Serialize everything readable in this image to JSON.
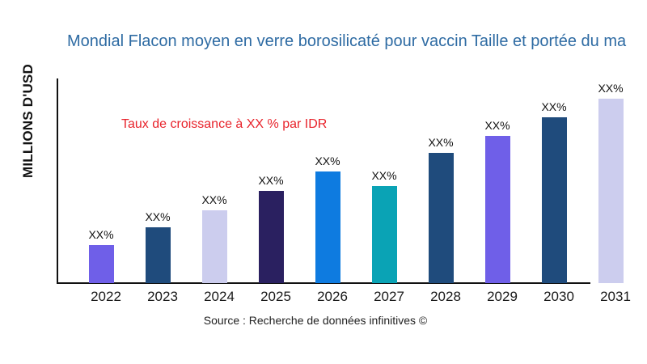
{
  "title": {
    "text": "Mondial Flacon moyen en verre borosilicaté pour vaccin Taille et portée du ma",
    "color": "#2e6ba3"
  },
  "annotation": {
    "text": "Taux de croissance à XX % par IDR",
    "color": "#e8232b"
  },
  "y_axis_label": "MILLIONS D'USD",
  "source": "Source : Recherche de données infinitives ©",
  "chart_data": {
    "type": "bar",
    "title": "Mondial Flacon moyen en verre borosilicaté pour vaccin Taille et portée du ma",
    "xlabel": "",
    "ylabel": "MILLIONS D'USD",
    "categories": [
      "2022",
      "2023",
      "2024",
      "2025",
      "2026",
      "2027",
      "2028",
      "2029",
      "2030",
      "2031"
    ],
    "values": [
      47,
      69,
      90,
      114,
      138,
      120,
      161,
      182,
      205,
      228
    ],
    "value_labels": [
      "XX%",
      "XX%",
      "XX%",
      "XX%",
      "XX%",
      "XX%",
      "XX%",
      "XX%",
      "XX%",
      "XX%"
    ],
    "bar_colors": [
      "#6f5fe8",
      "#1f4b7c",
      "#cccdee",
      "#2a2060",
      "#0e7be0",
      "#0aa3b5",
      "#1f4b7c",
      "#6f5fe8",
      "#1f4b7c",
      "#cccdee"
    ],
    "ylim": [
      0,
      253
    ],
    "grid": false,
    "legend": false,
    "annotation": "Taux de croissance à XX % par IDR",
    "source": "Source : Recherche de données infinitives ©"
  }
}
